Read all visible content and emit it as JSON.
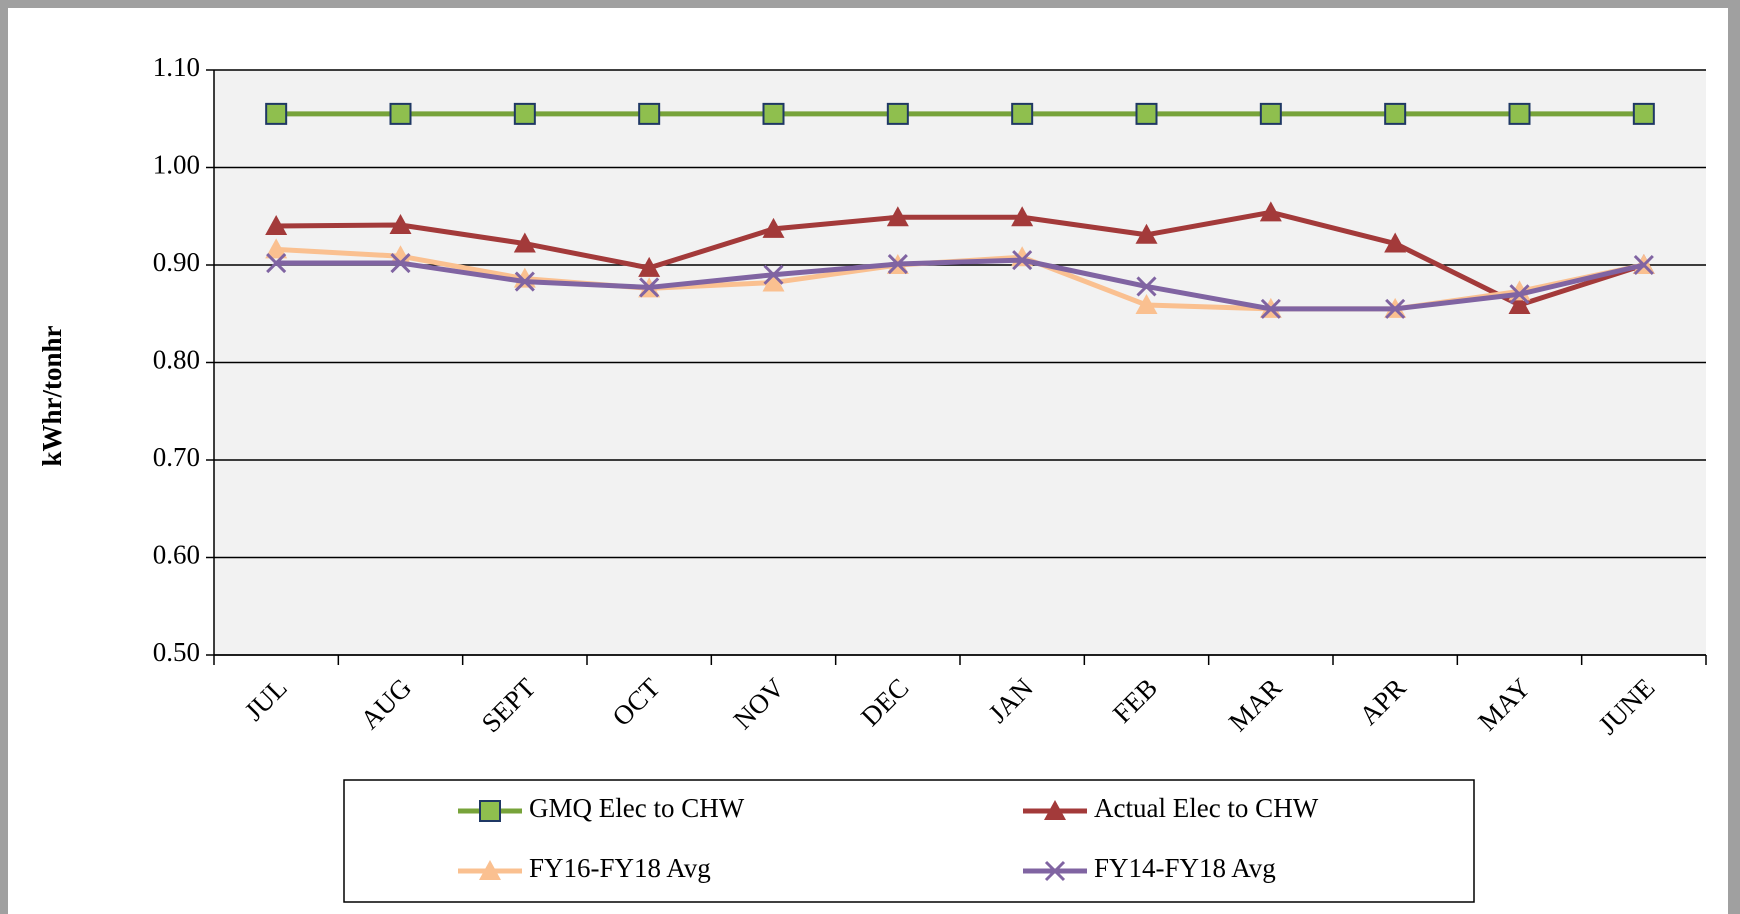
{
  "chart_data": {
    "type": "line",
    "categories": [
      "JUL",
      "AUG",
      "SEPT",
      "OCT",
      "NOV",
      "DEC",
      "JAN",
      "FEB",
      "MAR",
      "APR",
      "MAY",
      "JUNE"
    ],
    "ylabel": "kWhr/tonhr",
    "ylim": [
      0.5,
      1.1
    ],
    "yticks": [
      {
        "value": 0.5,
        "label": "0.50"
      },
      {
        "value": 0.6,
        "label": "0.60"
      },
      {
        "value": 0.7,
        "label": "0.70"
      },
      {
        "value": 0.8,
        "label": "0.80"
      },
      {
        "value": 0.9,
        "label": "0.90"
      },
      {
        "value": 1.0,
        "label": "1.00"
      },
      {
        "value": 1.1,
        "label": "1.10"
      }
    ],
    "grid": true,
    "legend": "bottom",
    "series": [
      {
        "name": "GMQ Elec to CHW",
        "color": "#77a33a",
        "marker": "square",
        "values": [
          1.055,
          1.055,
          1.055,
          1.055,
          1.055,
          1.055,
          1.055,
          1.055,
          1.055,
          1.055,
          1.055,
          1.055
        ]
      },
      {
        "name": "Actual Elec to CHW",
        "color": "#a33a3a",
        "marker": "triangle",
        "values": [
          0.94,
          0.941,
          0.922,
          0.897,
          0.937,
          0.949,
          0.949,
          0.931,
          0.954,
          0.922,
          0.859,
          0.9
        ]
      },
      {
        "name": "FY16-FY18 Avg",
        "color": "#fac090",
        "marker": "triangle",
        "values": [
          0.916,
          0.909,
          0.886,
          0.876,
          0.882,
          0.9,
          0.908,
          0.859,
          0.855,
          0.855,
          0.873,
          0.9
        ]
      },
      {
        "name": "FY14-FY18 Avg",
        "color": "#8064a2",
        "marker": "x",
        "values": [
          0.902,
          0.902,
          0.883,
          0.877,
          0.89,
          0.901,
          0.905,
          0.878,
          0.855,
          0.855,
          0.87,
          0.9
        ]
      }
    ]
  }
}
